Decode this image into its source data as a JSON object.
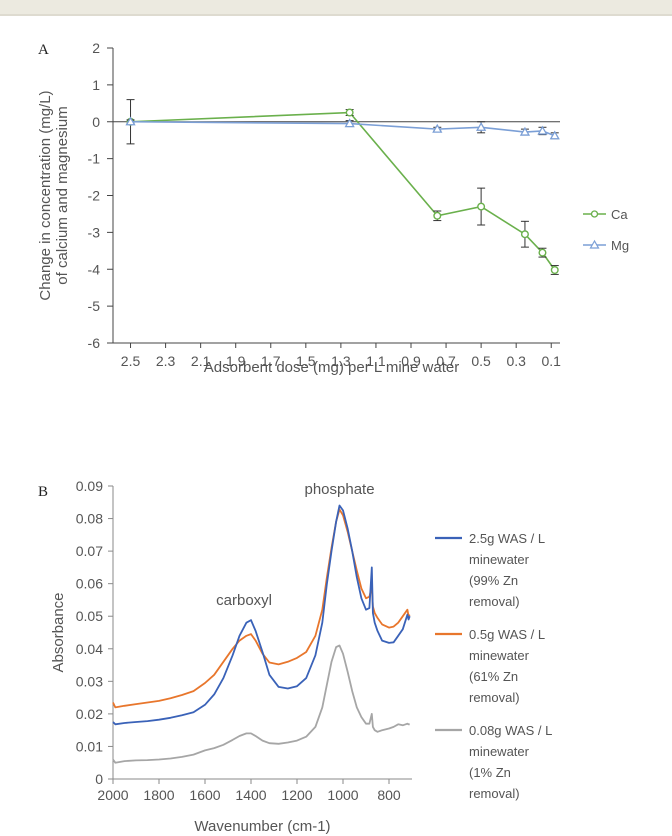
{
  "chart_data": [
    {
      "panel": "A",
      "type": "line",
      "xlabel": "Adsorbent dose (mg) per L mine water",
      "ylabel_lines": [
        "Change in concentration (mg/L)",
        "of calcium and magnesium"
      ],
      "xlim": [
        2.6,
        0.05
      ],
      "ylim": [
        -6,
        2
      ],
      "x_ticks": [
        "2.5",
        "2.3",
        "2.1",
        "1.9",
        "1.7",
        "1.5",
        "1.3",
        "1.1",
        "0.9",
        "0.7",
        "0.5",
        "0.3",
        "0.1"
      ],
      "y_ticks": [
        "2",
        "1",
        "0",
        "-1",
        "-2",
        "-3",
        "-4",
        "-5",
        "-6"
      ],
      "legend_position": "right",
      "series": [
        {
          "name": "Ca",
          "color": "#6ab04c",
          "marker": "circle",
          "points": [
            {
              "x": 2.5,
              "y": 0.0,
              "err": 0.6
            },
            {
              "x": 1.25,
              "y": 0.25,
              "err": 0.08
            },
            {
              "x": 0.75,
              "y": -2.55,
              "err": 0.13
            },
            {
              "x": 0.5,
              "y": -2.3,
              "err": 0.5
            },
            {
              "x": 0.25,
              "y": -3.05,
              "err": 0.35
            },
            {
              "x": 0.15,
              "y": -3.55,
              "err": 0.12
            },
            {
              "x": 0.08,
              "y": -4.02,
              "err": 0.12
            }
          ]
        },
        {
          "name": "Mg",
          "color": "#7b9fd6",
          "marker": "triangle",
          "points": [
            {
              "x": 2.5,
              "y": 0.0,
              "err": 0.05
            },
            {
              "x": 1.25,
              "y": -0.05,
              "err": 0.08
            },
            {
              "x": 0.75,
              "y": -0.2,
              "err": 0.05
            },
            {
              "x": 0.5,
              "y": -0.15,
              "err": 0.15
            },
            {
              "x": 0.25,
              "y": -0.28,
              "err": 0.08
            },
            {
              "x": 0.15,
              "y": -0.25,
              "err": 0.1
            },
            {
              "x": 0.08,
              "y": -0.38,
              "err": 0.08
            }
          ]
        }
      ]
    },
    {
      "panel": "B",
      "type": "line",
      "xlabel": "Wavenumber (cm-1)",
      "ylabel": "Absorbance",
      "xlim": [
        2000,
        700
      ],
      "ylim": [
        0,
        0.09
      ],
      "x_ticks": [
        "2000",
        "1800",
        "1600",
        "1400",
        "1200",
        "1000",
        "800"
      ],
      "y_ticks": [
        "0.09",
        "0.08",
        "0.07",
        "0.06",
        "0.05",
        "0.04",
        "0.03",
        "0.02",
        "0.01",
        "0"
      ],
      "annotations": [
        {
          "text": "phosphate",
          "x": 1015,
          "y": 0.0875
        },
        {
          "text": "carboxyl",
          "x": 1430,
          "y": 0.0535
        }
      ],
      "legend_position": "right",
      "series": [
        {
          "legend_lines": [
            "2.5g WAS / L",
            "minewater",
            "(99% Zn",
            "removal)"
          ],
          "color": "#3a62b8",
          "x": [
            2000,
            1990,
            1950,
            1900,
            1850,
            1800,
            1750,
            1700,
            1650,
            1600,
            1560,
            1520,
            1480,
            1450,
            1420,
            1400,
            1380,
            1350,
            1320,
            1280,
            1240,
            1200,
            1160,
            1120,
            1090,
            1070,
            1050,
            1030,
            1015,
            1000,
            980,
            960,
            940,
            920,
            900,
            885,
            875,
            870,
            862,
            850,
            830,
            800,
            780,
            760,
            740,
            720,
            715,
            710
          ],
          "y": [
            0.0175,
            0.0168,
            0.0172,
            0.0175,
            0.0178,
            0.0182,
            0.0188,
            0.0196,
            0.0205,
            0.0228,
            0.026,
            0.031,
            0.038,
            0.044,
            0.048,
            0.0488,
            0.0455,
            0.039,
            0.032,
            0.0283,
            0.0278,
            0.0285,
            0.031,
            0.038,
            0.048,
            0.06,
            0.07,
            0.079,
            0.084,
            0.0825,
            0.077,
            0.07,
            0.062,
            0.0555,
            0.052,
            0.0525,
            0.065,
            0.051,
            0.048,
            0.0455,
            0.0425,
            0.0418,
            0.042,
            0.044,
            0.046,
            0.0505,
            0.049,
            0.05
          ]
        },
        {
          "legend_lines": [
            "0.5g WAS / L",
            "minewater",
            "(61% Zn",
            "removal)"
          ],
          "color": "#e8762c",
          "x": [
            2000,
            1990,
            1950,
            1900,
            1850,
            1800,
            1750,
            1700,
            1650,
            1600,
            1560,
            1520,
            1480,
            1450,
            1420,
            1400,
            1380,
            1350,
            1320,
            1280,
            1240,
            1200,
            1160,
            1120,
            1090,
            1070,
            1050,
            1030,
            1015,
            1000,
            980,
            960,
            940,
            920,
            900,
            885,
            875,
            870,
            862,
            850,
            830,
            800,
            780,
            760,
            740,
            720,
            715,
            710
          ],
          "y": [
            0.0235,
            0.022,
            0.0225,
            0.023,
            0.0235,
            0.024,
            0.0248,
            0.0258,
            0.027,
            0.0295,
            0.032,
            0.036,
            0.04,
            0.0425,
            0.044,
            0.0445,
            0.0425,
            0.0385,
            0.0358,
            0.0352,
            0.036,
            0.0372,
            0.039,
            0.044,
            0.052,
            0.062,
            0.071,
            0.079,
            0.0828,
            0.081,
            0.076,
            0.07,
            0.064,
            0.0585,
            0.0555,
            0.056,
            0.059,
            0.053,
            0.051,
            0.0495,
            0.0475,
            0.0465,
            0.0468,
            0.048,
            0.05,
            0.052,
            0.05,
            0.0505
          ]
        },
        {
          "legend_lines": [
            "0.08g WAS / L",
            "minewater",
            "(1% Zn",
            "removal)"
          ],
          "color": "#a6a6a6",
          "x": [
            2000,
            1990,
            1950,
            1900,
            1850,
            1800,
            1750,
            1700,
            1650,
            1600,
            1560,
            1520,
            1480,
            1450,
            1420,
            1400,
            1380,
            1350,
            1320,
            1280,
            1240,
            1200,
            1160,
            1120,
            1090,
            1070,
            1050,
            1030,
            1015,
            1000,
            980,
            960,
            940,
            920,
            900,
            885,
            875,
            870,
            862,
            850,
            830,
            800,
            780,
            760,
            740,
            720,
            715,
            710
          ],
          "y": [
            0.006,
            0.005,
            0.0055,
            0.0057,
            0.0058,
            0.006,
            0.0063,
            0.0068,
            0.0075,
            0.0088,
            0.0095,
            0.0105,
            0.012,
            0.0132,
            0.014,
            0.014,
            0.0132,
            0.0118,
            0.011,
            0.0108,
            0.0112,
            0.0118,
            0.013,
            0.016,
            0.022,
            0.029,
            0.036,
            0.0405,
            0.041,
            0.0385,
            0.033,
            0.027,
            0.022,
            0.019,
            0.017,
            0.017,
            0.02,
            0.016,
            0.015,
            0.0145,
            0.015,
            0.0155,
            0.016,
            0.0168,
            0.0165,
            0.017,
            0.0168,
            0.0168
          ]
        }
      ]
    }
  ]
}
